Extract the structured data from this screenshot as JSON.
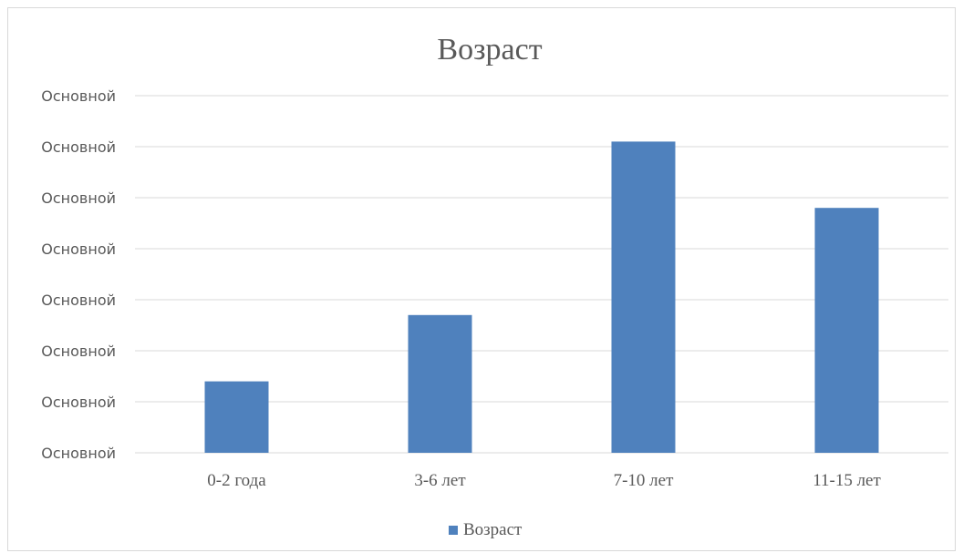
{
  "chart_data": {
    "type": "bar",
    "title": "Возраст",
    "categories": [
      "0-2 года",
      "3-6 лет",
      "7-10 лет",
      "11-15 лет"
    ],
    "series": [
      {
        "name": "Возраст",
        "values": [
          1.4,
          2.7,
          6.1,
          4.8
        ]
      }
    ],
    "ylim": [
      0,
      7
    ],
    "ytick_values": [
      0,
      1,
      2,
      3,
      4,
      5,
      6,
      7
    ],
    "ytick_labels": [
      "Основной",
      "Основной",
      "Основной",
      "Основной",
      "Основной",
      "Основной",
      "Основной",
      "Основной"
    ],
    "xlabel": "",
    "ylabel": "",
    "grid": true,
    "legend_position": "bottom",
    "colors": {
      "bar": "#4f81bd"
    }
  }
}
